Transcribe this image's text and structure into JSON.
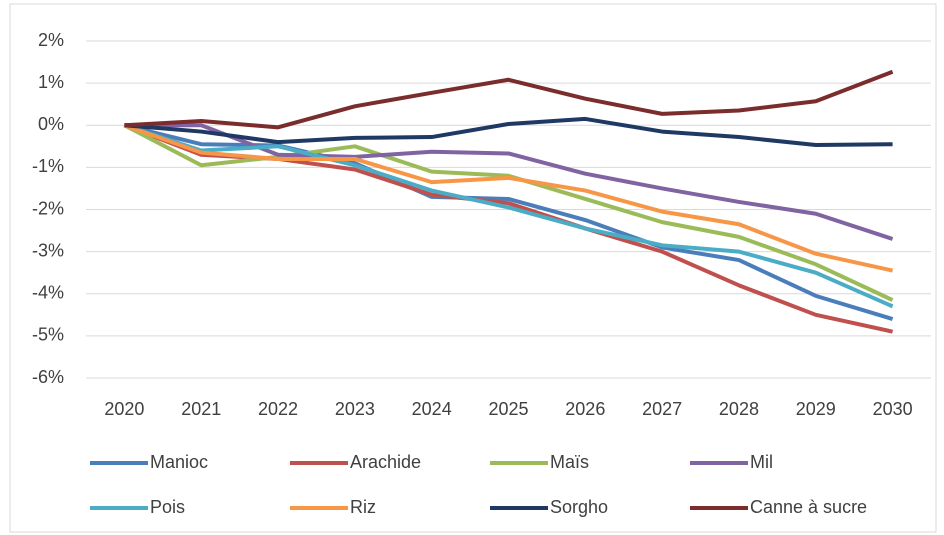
{
  "chart_data": {
    "type": "line",
    "categories": [
      "2020",
      "2021",
      "2022",
      "2023",
      "2024",
      "2025",
      "2026",
      "2027",
      "2028",
      "2029",
      "2030"
    ],
    "ylim": [
      -6,
      2
    ],
    "yticks": [
      {
        "value": -6,
        "label": "-6%"
      },
      {
        "value": -5,
        "label": "-5%"
      },
      {
        "value": -4,
        "label": "-4%"
      },
      {
        "value": -3,
        "label": "-3%"
      },
      {
        "value": -2,
        "label": "-2%"
      },
      {
        "value": -1,
        "label": "-1%"
      },
      {
        "value": 0,
        "label": "0%"
      },
      {
        "value": 1,
        "label": "1%"
      },
      {
        "value": 2,
        "label": "2%"
      }
    ],
    "grid": true,
    "legend": "bottom",
    "series": [
      {
        "name": "Manioc",
        "color": "#4a7ebb",
        "values": [
          0,
          -0.45,
          -0.48,
          -0.9,
          -1.7,
          -1.75,
          -2.25,
          -2.9,
          -3.2,
          -4.05,
          -4.6
        ]
      },
      {
        "name": "Arachide",
        "color": "#c0504d",
        "values": [
          0,
          -0.7,
          -0.8,
          -1.05,
          -1.65,
          -1.85,
          -2.45,
          -3.0,
          -3.8,
          -4.5,
          -4.9
        ]
      },
      {
        "name": "Maïs",
        "color": "#9bbb59",
        "values": [
          0,
          -0.95,
          -0.75,
          -0.5,
          -1.1,
          -1.2,
          -1.75,
          -2.3,
          -2.65,
          -3.3,
          -4.15
        ]
      },
      {
        "name": "Mil",
        "color": "#8064a2",
        "values": [
          0,
          0.0,
          -0.7,
          -0.75,
          -0.63,
          -0.67,
          -1.15,
          -1.5,
          -1.82,
          -2.1,
          -2.7
        ]
      },
      {
        "name": "Pois",
        "color": "#4bacc6",
        "values": [
          0,
          -0.6,
          -0.5,
          -0.95,
          -1.55,
          -1.95,
          -2.45,
          -2.85,
          -3.0,
          -3.5,
          -4.3
        ]
      },
      {
        "name": "Riz",
        "color": "#f79646",
        "values": [
          0,
          -0.65,
          -0.8,
          -0.8,
          -1.35,
          -1.25,
          -1.55,
          -2.05,
          -2.35,
          -3.05,
          -3.45
        ]
      },
      {
        "name": "Sorgho",
        "color": "#1f3864",
        "values": [
          0,
          -0.15,
          -0.4,
          -0.3,
          -0.28,
          0.03,
          0.15,
          -0.15,
          -0.28,
          -0.47,
          -0.45
        ]
      },
      {
        "name": "Canne à sucre",
        "color": "#7b2c2c",
        "values": [
          0,
          0.1,
          -0.05,
          0.45,
          0.77,
          1.08,
          0.63,
          0.27,
          0.35,
          0.57,
          1.27
        ]
      }
    ]
  }
}
